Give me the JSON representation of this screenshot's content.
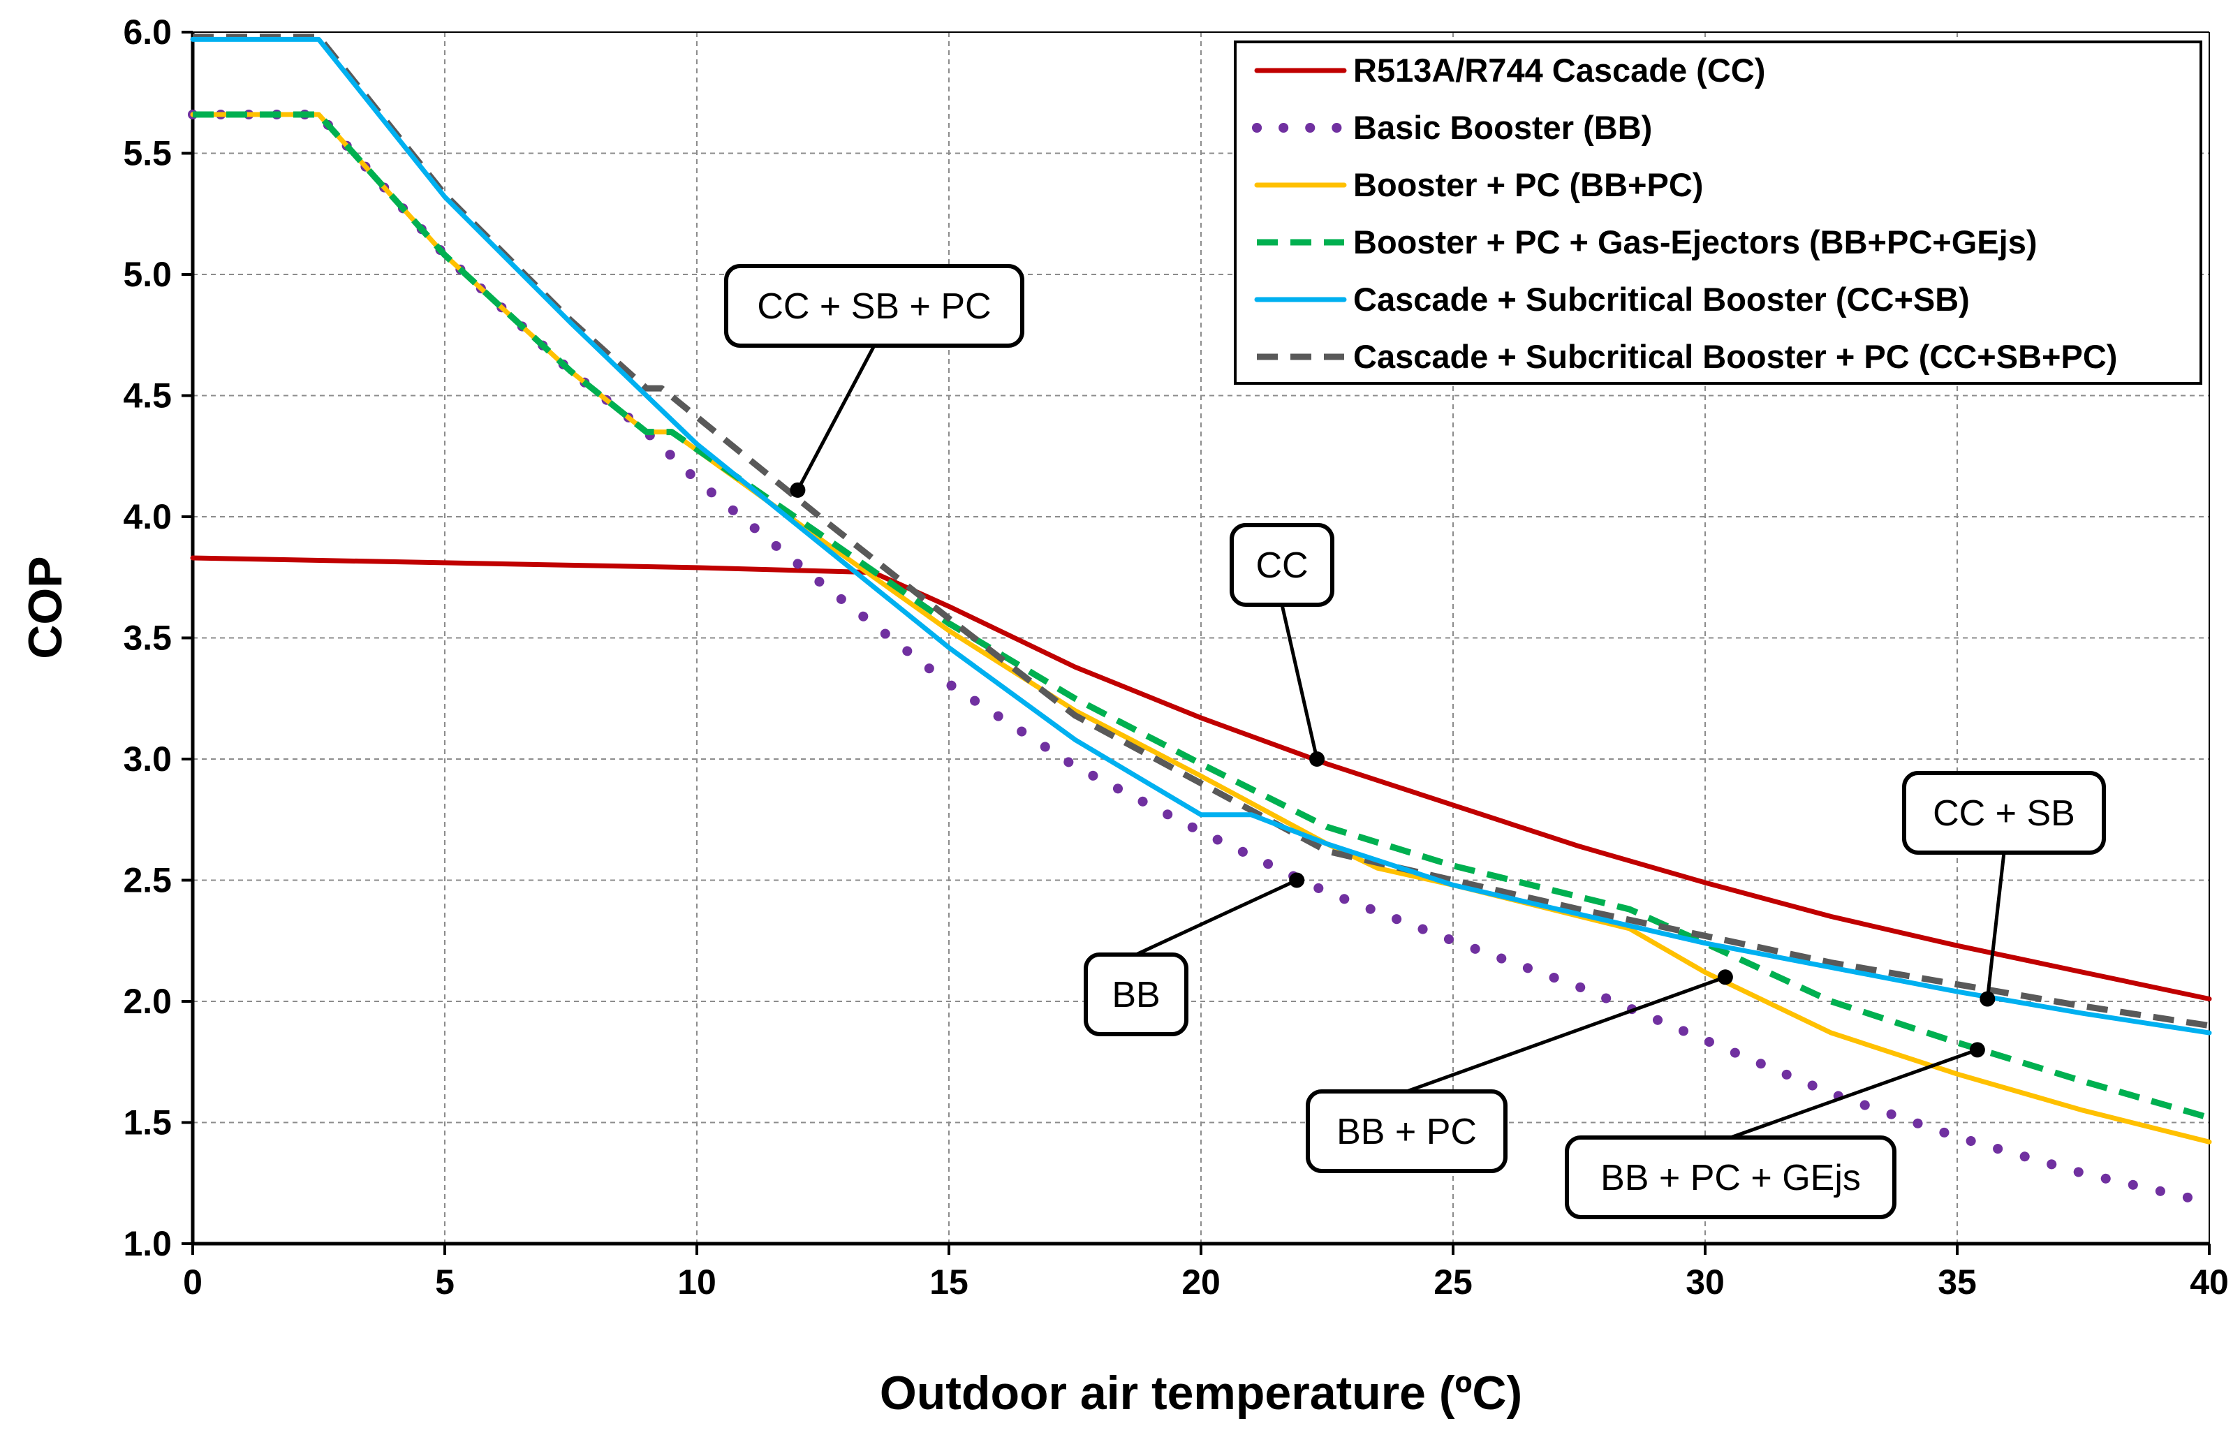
{
  "chart_data": {
    "type": "line",
    "title": "",
    "xlabel": "Outdoor air temperature (ºC)",
    "ylabel": "COP",
    "xlim": [
      0,
      40
    ],
    "ylim": [
      1.0,
      6.0
    ],
    "xticks": [
      "0",
      "5",
      "10",
      "15",
      "20",
      "25",
      "30",
      "35",
      "40"
    ],
    "yticks": [
      "1.0",
      "1.5",
      "2.0",
      "2.5",
      "3.0",
      "3.5",
      "4.0",
      "4.5",
      "5.0",
      "5.5",
      "6.0"
    ],
    "grid": true,
    "legend_position": "top-right",
    "series": [
      {
        "name": "R513A/R744 Cascade (CC)",
        "color": "#C00000",
        "style": "solid",
        "x": [
          0,
          5,
          10,
          13.5,
          15,
          17.5,
          20,
          22.5,
          25,
          27.5,
          30,
          32.5,
          35,
          37.5,
          40
        ],
        "y": [
          3.83,
          3.81,
          3.79,
          3.77,
          3.63,
          3.38,
          3.17,
          2.98,
          2.81,
          2.64,
          2.49,
          2.35,
          2.23,
          2.12,
          2.01
        ]
      },
      {
        "name": "Basic Booster (BB)",
        "color": "#7030A0",
        "style": "dotted",
        "x": [
          0,
          2.5,
          5,
          7.5,
          9,
          10,
          12.5,
          15,
          17.5,
          20,
          22.5,
          25,
          27.5,
          30,
          32.5,
          35,
          37.5,
          40
        ],
        "y": [
          5.66,
          5.66,
          5.08,
          4.6,
          4.35,
          4.15,
          3.72,
          3.31,
          2.97,
          2.7,
          2.45,
          2.25,
          2.06,
          1.84,
          1.62,
          1.44,
          1.29,
          1.17
        ]
      },
      {
        "name": "Booster + PC (BB+PC)",
        "color": "#FFC000",
        "style": "solid",
        "x": [
          0,
          2.5,
          5,
          7.5,
          9,
          9.5,
          12.5,
          15,
          17.5,
          20,
          22.5,
          23.5,
          25,
          28.5,
          30,
          32.5,
          35,
          37.5,
          40
        ],
        "y": [
          5.66,
          5.66,
          5.08,
          4.6,
          4.35,
          4.35,
          3.9,
          3.53,
          3.2,
          2.93,
          2.65,
          2.55,
          2.48,
          2.3,
          2.12,
          1.87,
          1.7,
          1.55,
          1.42
        ]
      },
      {
        "name": "Booster + PC + Gas-Ejectors (BB+PC+GEjs)",
        "color": "#00B050",
        "style": "dashed",
        "x": [
          0,
          2.5,
          5,
          7.5,
          9,
          9.5,
          12.5,
          15,
          17.5,
          20,
          22.5,
          25,
          28.5,
          30,
          32.5,
          35,
          37.5,
          40
        ],
        "y": [
          5.66,
          5.66,
          5.08,
          4.6,
          4.35,
          4.35,
          3.92,
          3.56,
          3.25,
          2.98,
          2.72,
          2.56,
          2.38,
          2.24,
          2.0,
          1.83,
          1.67,
          1.52
        ]
      },
      {
        "name": "Cascade + Subcritical Booster (CC+SB)",
        "color": "#00B0F0",
        "style": "solid",
        "x": [
          0,
          2.5,
          5,
          7.5,
          10,
          12.5,
          15,
          17.5,
          20,
          21,
          22.5,
          25,
          27.5,
          30,
          32.5,
          35,
          37.5,
          40
        ],
        "y": [
          5.97,
          5.97,
          5.32,
          4.8,
          4.3,
          3.88,
          3.46,
          3.08,
          2.77,
          2.77,
          2.65,
          2.48,
          2.36,
          2.24,
          2.14,
          2.04,
          1.95,
          1.87
        ]
      },
      {
        "name": "Cascade + Subcritical Booster + PC (CC+SB+PC)",
        "color": "#595959",
        "style": "dashed",
        "x": [
          0,
          2.5,
          5,
          7.5,
          9,
          9.3,
          12.5,
          15,
          17.5,
          20,
          22.5,
          25,
          27.5,
          30,
          32.5,
          35,
          37.5,
          40
        ],
        "y": [
          5.98,
          5.98,
          5.33,
          4.81,
          4.53,
          4.53,
          3.99,
          3.58,
          3.18,
          2.9,
          2.62,
          2.5,
          2.38,
          2.27,
          2.16,
          2.07,
          1.98,
          1.9
        ]
      }
    ],
    "annotations": [
      {
        "text": "CC + SB + PC",
        "point": [
          12.0,
          4.11
        ]
      },
      {
        "text": "CC",
        "point": [
          22.3,
          3.0
        ]
      },
      {
        "text": "BB",
        "point": [
          21.9,
          2.5
        ]
      },
      {
        "text": "CC + SB",
        "point": [
          35.6,
          2.01
        ]
      },
      {
        "text": "BB + PC",
        "point": [
          30.4,
          2.1
        ]
      },
      {
        "text": "BB + PC + GEjs",
        "point": [
          35.4,
          1.8
        ]
      }
    ]
  }
}
